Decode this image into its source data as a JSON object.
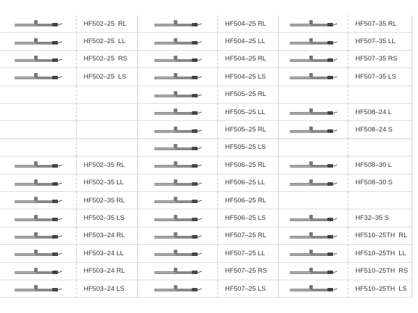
{
  "table": {
    "rows": [
      [
        "HF502–25  RL",
        "HF504–25 RL",
        "HF507–35 RL"
      ],
      [
        "HF502–25  LL",
        "HF504–25 LL",
        "HF507–35 LL"
      ],
      [
        "HF502–25  RS",
        "HF504–25 RL",
        "HF507–35 RS"
      ],
      [
        "HF502–25  LS",
        "HF504–25 LS",
        "HF507–35 LS"
      ],
      [
        null,
        "HF505–25 RL",
        null
      ],
      [
        null,
        "HF505–25 LL",
        "HF508–24 L"
      ],
      [
        null,
        "HF505–25 RL",
        "HF508–24 S"
      ],
      [
        null,
        "HF505–25 LS",
        null
      ],
      [
        "HF502–35 RL",
        "HF506–25 RL",
        "HF508–30 L"
      ],
      [
        "HF502–35 LL",
        "HF506–25 LL",
        "HF508–30 S"
      ],
      [
        "HF502–35 RL",
        "HF506–25 RL",
        null
      ],
      [
        "HF502–35 LS",
        "HF506–25 LS",
        "HF32–35 S"
      ],
      [
        "HF503–24 RL",
        "HF507–25 RL",
        "HF510–25TH  RL"
      ],
      [
        "HF503–24 LL",
        "HF507–25 LL",
        "HF510–25TH  LL"
      ],
      [
        "HF503–24 RL",
        "HF507–25 RS",
        "HF510–25TH  RS"
      ],
      [
        "HF503–24 LS",
        "HF507–25 LS",
        "HF510–25TH  LS"
      ]
    ]
  }
}
